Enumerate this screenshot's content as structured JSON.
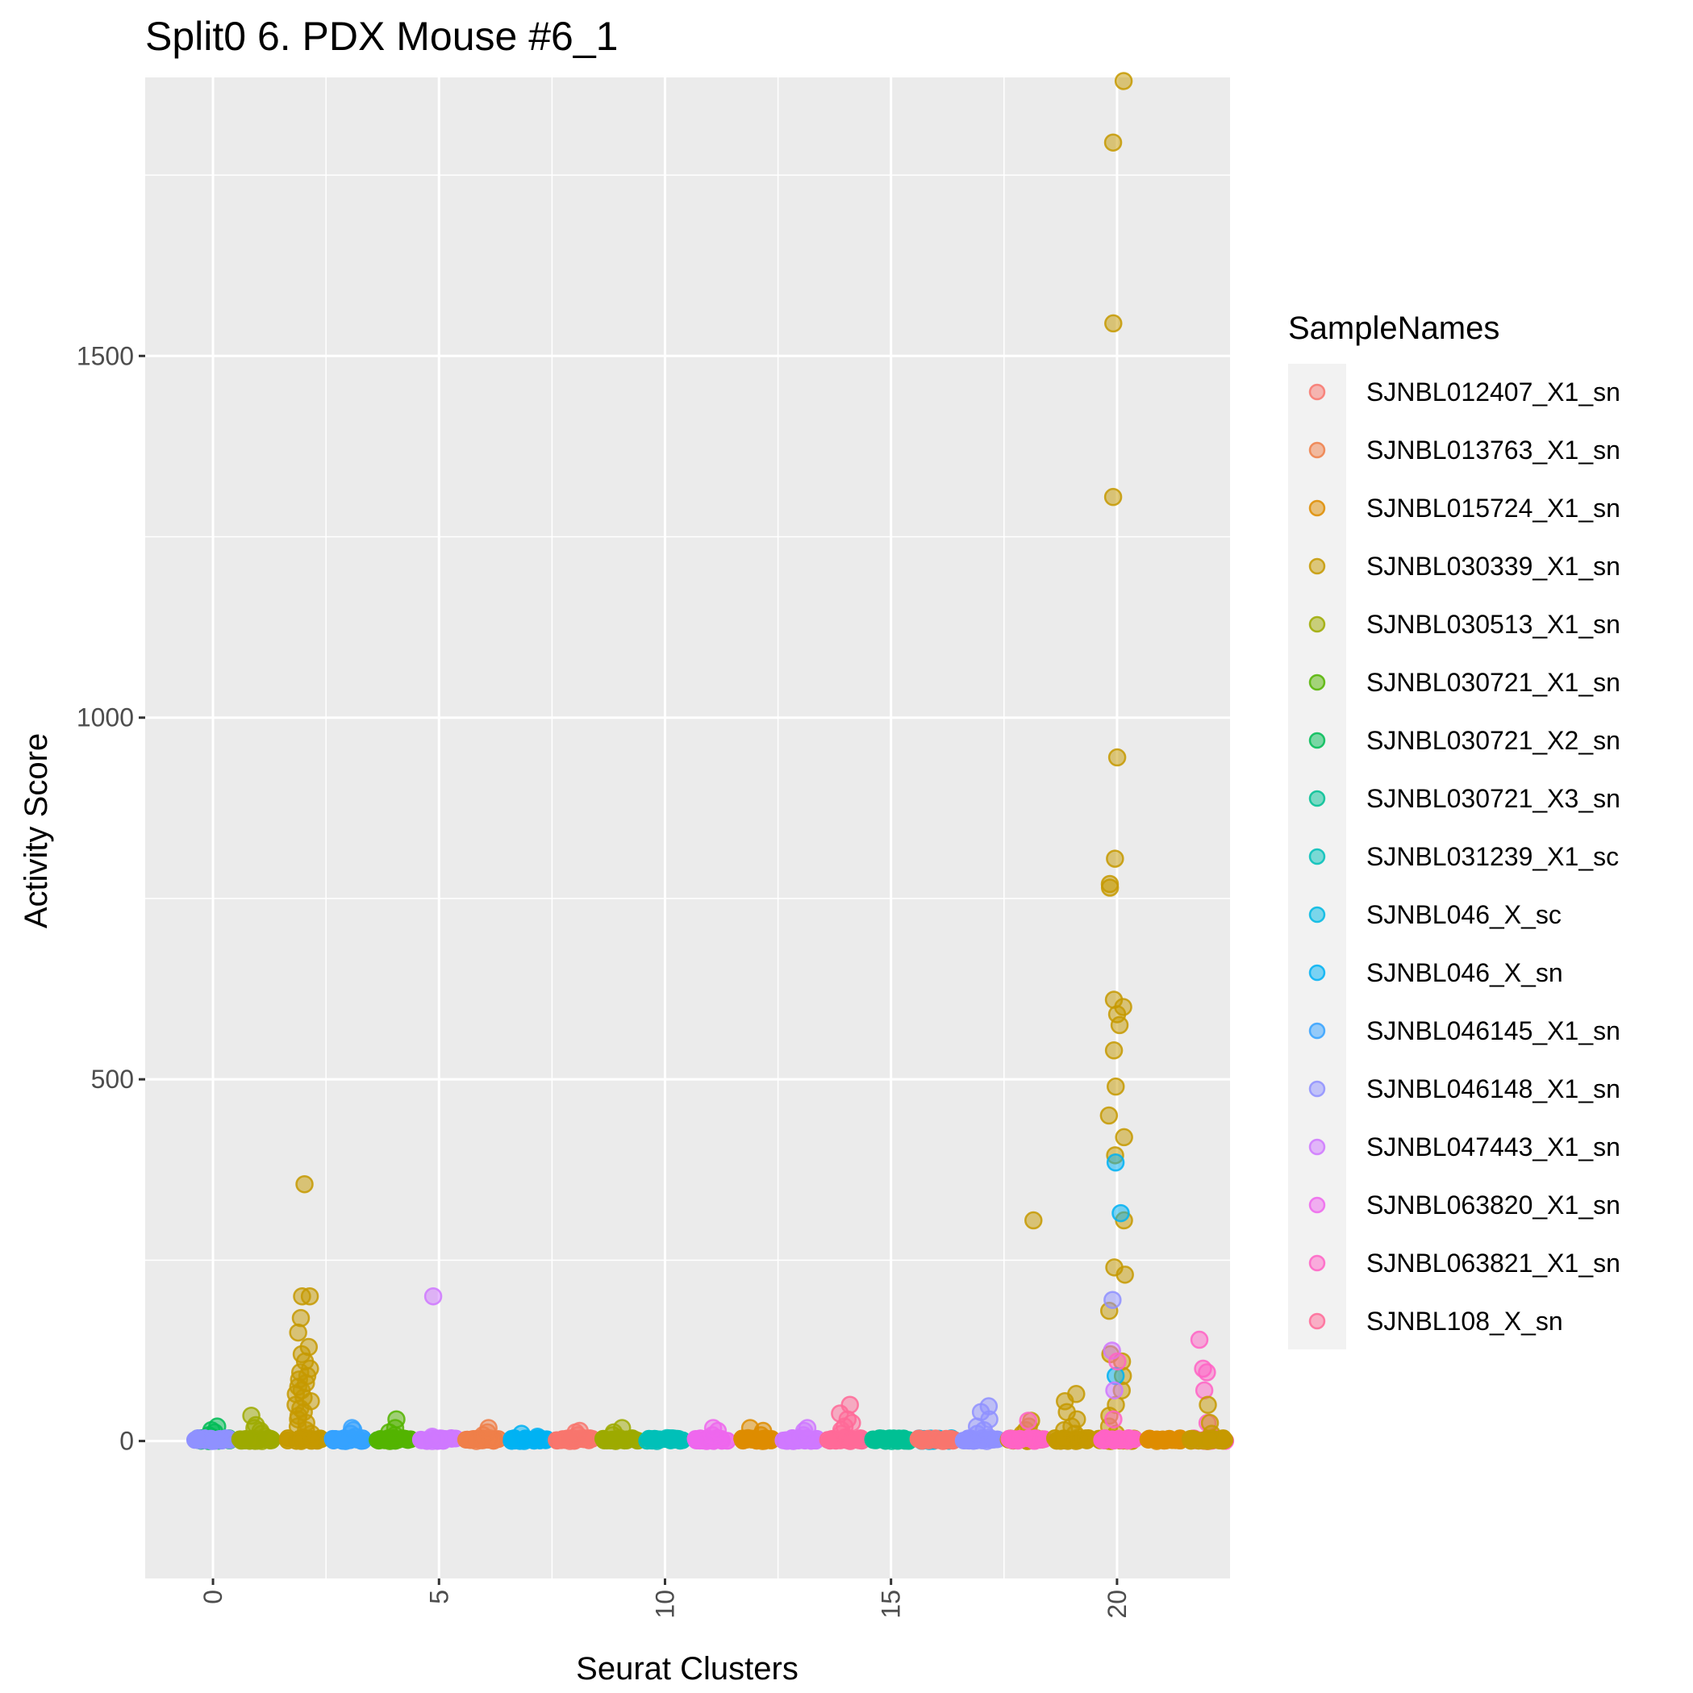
{
  "chart_data": {
    "type": "scatter",
    "title": "Split0 6. PDX Mouse #6_1",
    "xlabel": "Seurat Clusters",
    "ylabel": "Activity Score",
    "xlim": [
      -1.5,
      22.5
    ],
    "ylim": [
      -190,
      1885
    ],
    "x_ticks": [
      0,
      5,
      10,
      15,
      20
    ],
    "x_tick_labels": [
      "0",
      "5",
      "10",
      "15",
      "20"
    ],
    "y_ticks": [
      0,
      500,
      1000,
      1500
    ],
    "y_tick_labels": [
      "0",
      "500",
      "1000",
      "1500"
    ],
    "grid": true,
    "legend": {
      "title": "SampleNames",
      "placement": "right",
      "entries": [
        {
          "label": "SJNBL012407_X1_sn",
          "color": "#F8766D"
        },
        {
          "label": "SJNBL013763_X1_sn",
          "color": "#E58700"
        },
        {
          "label": "SJNBL015724_X1_sn",
          "color": "#C99800"
        },
        {
          "label": "SJNBL030339_X1_sn",
          "color": "#A3A500"
        },
        {
          "label": "SJNBL030513_X1_sn",
          "color": "#6BB100"
        },
        {
          "label": "SJNBL030721_X1_sn",
          "color": "#00BA38"
        },
        {
          "label": "SJNBL030721_X2_sn",
          "color": "#00BF7D"
        },
        {
          "label": "SJNBL030721_X3_sn",
          "color": "#00C0AF"
        },
        {
          "label": "SJNBL031239_X1_sc",
          "color": "#00BCD8"
        },
        {
          "label": "SJNBL046_X_sc",
          "color": "#00B0F6"
        },
        {
          "label": "SJNBL046_X_sn",
          "color": "#00B0F6"
        },
        {
          "label": "SJNBL046145_X1_sn",
          "color": "#619CFF"
        },
        {
          "label": "SJNBL046148_X1_sn",
          "color": "#B983FF"
        },
        {
          "label": "SJNBL047443_X1_sn",
          "color": "#E76BF3"
        },
        {
          "label": "SJNBL063820_X1_sn",
          "color": "#FD61D1"
        },
        {
          "label": "SJNBL063821_X1_sn",
          "color": "#FF67A4"
        },
        {
          "label": "SJNBL108_X_sn",
          "color": "#FF6C91"
        }
      ]
    },
    "legend_colors": [
      "#F8766D",
      "#EF7F49",
      "#DE8C00",
      "#C59900",
      "#9DAA00",
      "#53B400",
      "#00BC56",
      "#00C094",
      "#00C0B8",
      "#00B9E3",
      "#00B2F3",
      "#35A2FF",
      "#8F91FF",
      "#CF78FF",
      "#EE67ED",
      "#FF63C5",
      "#FF6A98"
    ],
    "series": [
      {
        "cluster": 0,
        "sample": "SJNBL030721_X2_sn",
        "values": [
          0,
          2,
          5,
          8,
          12,
          15,
          20,
          3
        ]
      },
      {
        "cluster": 0,
        "sample": "SJNBL046148_X1_sn",
        "values": [
          0
        ]
      },
      {
        "cluster": 1,
        "sample": "SJNBL030513_X1_sn",
        "values": [
          0,
          3,
          6,
          10,
          14,
          18,
          22,
          35
        ]
      },
      {
        "cluster": 2,
        "sample": "SJNBL030339_X1_sn",
        "values": [
          0,
          5,
          10,
          15,
          20,
          25,
          30,
          35,
          40,
          45,
          50,
          55,
          60,
          65,
          70,
          75,
          80,
          85,
          90,
          95,
          100,
          110,
          120,
          130,
          150,
          170,
          200,
          200,
          355
        ]
      },
      {
        "cluster": 3,
        "sample": "SJNBL046145_X1_sn",
        "values": [
          0,
          3,
          6,
          10,
          15,
          18
        ]
      },
      {
        "cluster": 4,
        "sample": "SJNBL030721_X1_sn",
        "values": [
          0,
          4,
          8,
          12,
          18,
          30
        ]
      },
      {
        "cluster": 5,
        "sample": "SJNBL047443_X1_sn",
        "values": [
          0,
          3,
          6,
          200
        ]
      },
      {
        "cluster": 6,
        "sample": "SJNBL013763_X1_sn",
        "values": [
          0,
          4,
          8,
          12,
          18
        ]
      },
      {
        "cluster": 7,
        "sample": "SJNBL046_X_sn",
        "values": [
          0,
          3,
          6,
          10
        ]
      },
      {
        "cluster": 8,
        "sample": "SJNBL012407_X1_sn",
        "values": [
          0,
          4,
          8,
          12,
          14
        ]
      },
      {
        "cluster": 9,
        "sample": "SJNBL030513_X1_sn",
        "values": [
          0,
          4,
          8,
          12,
          18
        ]
      },
      {
        "cluster": 10,
        "sample": "SJNBL031239_X1_sc",
        "values": [
          0,
          2,
          4
        ]
      },
      {
        "cluster": 11,
        "sample": "SJNBL063820_X1_sn",
        "values": [
          0,
          4,
          8,
          14,
          18
        ]
      },
      {
        "cluster": 12,
        "sample": "SJNBL015724_X1_sn",
        "values": [
          0,
          4,
          8,
          14,
          18
        ]
      },
      {
        "cluster": 13,
        "sample": "SJNBL047443_X1_sn",
        "values": [
          0,
          4,
          8,
          14,
          18
        ]
      },
      {
        "cluster": 14,
        "sample": "SJNBL108_X_sn",
        "values": [
          0,
          5,
          10,
          15,
          20,
          25,
          30,
          38,
          50
        ]
      },
      {
        "cluster": 15,
        "sample": "SJNBL030721_X3_sn",
        "values": [
          0,
          2
        ]
      },
      {
        "cluster": 16,
        "sample": "SJNBL046_X_sc",
        "values": [
          0,
          2
        ]
      },
      {
        "cluster": 16,
        "sample": "SJNBL012407_X1_sn",
        "values": [
          0
        ]
      },
      {
        "cluster": 17,
        "sample": "SJNBL046148_X1_sn",
        "values": [
          0,
          5,
          10,
          15,
          20,
          30,
          40,
          48
        ]
      },
      {
        "cluster": 18,
        "sample": "SJNBL030339_X1_sn",
        "values": [
          0,
          5,
          10,
          15,
          20,
          28,
          305
        ]
      },
      {
        "cluster": 18,
        "sample": "SJNBL063821_X1_sn",
        "values": [
          28
        ]
      },
      {
        "cluster": 19,
        "sample": "SJNBL030339_X1_sn",
        "values": [
          0,
          5,
          10,
          15,
          20,
          30,
          40,
          55,
          65
        ]
      },
      {
        "cluster": 20,
        "sample": "SJNBL030339_X1_sn",
        "values": [
          0,
          10,
          20,
          35,
          50,
          70,
          90,
          110,
          120,
          180,
          230,
          240,
          305,
          395,
          420,
          450,
          490,
          540,
          575,
          590,
          600,
          610,
          765,
          770,
          805,
          945,
          1305,
          1545,
          1795,
          1880
        ]
      },
      {
        "cluster": 20,
        "sample": "SJNBL046_X_sn",
        "values": [
          90,
          315,
          385
        ]
      },
      {
        "cluster": 20,
        "sample": "SJNBL046148_X1_sn",
        "values": [
          195
        ]
      },
      {
        "cluster": 20,
        "sample": "SJNBL047443_X1_sn",
        "values": [
          70,
          125
        ]
      },
      {
        "cluster": 20,
        "sample": "SJNBL063821_X1_sn",
        "values": [
          30,
          110
        ]
      },
      {
        "cluster": 21,
        "sample": "SJNBL015724_X1_sn",
        "values": [
          0,
          2
        ]
      },
      {
        "cluster": 22,
        "sample": "SJNBL063821_X1_sn",
        "values": [
          0,
          25,
          70,
          95,
          100,
          140
        ]
      },
      {
        "cluster": 22,
        "sample": "SJNBL030339_X1_sn",
        "values": [
          0,
          10,
          25,
          50
        ]
      }
    ]
  }
}
